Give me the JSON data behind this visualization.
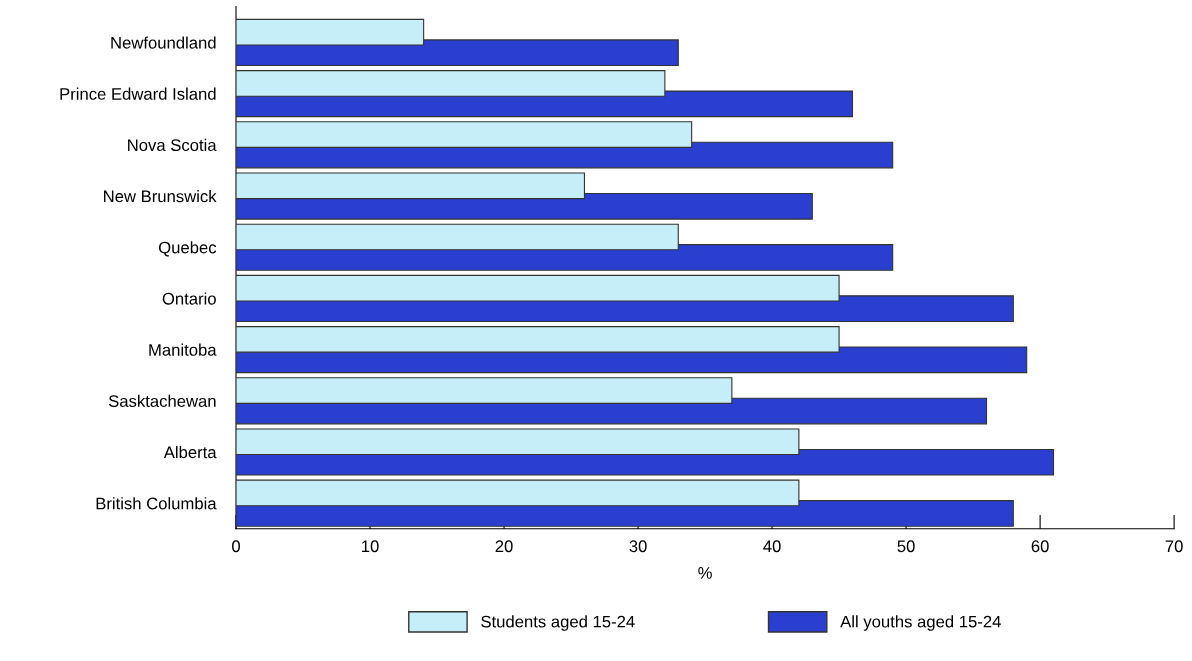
{
  "chart_data": {
    "type": "bar",
    "orientation": "horizontal",
    "xlabel": "%",
    "categories": [
      "Newfoundland",
      "Prince Edward Island",
      "Nova Scotia",
      "New Brunswick",
      "Quebec",
      "Ontario",
      "Manitoba",
      "Sasktachewan",
      "Alberta",
      "British Columbia"
    ],
    "series": [
      {
        "name": "Students aged 15-24",
        "color": "#c6eef8",
        "values": [
          14,
          32,
          34,
          26,
          33,
          45,
          45,
          37,
          42,
          42
        ]
      },
      {
        "name": "All youths aged 15-24",
        "color": "#2a3fd0",
        "values": [
          33,
          46,
          49,
          43,
          49,
          58,
          59,
          56,
          61,
          58
        ]
      }
    ],
    "xlim": [
      0,
      70
    ],
    "xticks": [
      0,
      10,
      20,
      30,
      40,
      50,
      60,
      70
    ],
    "grid": false,
    "legend": "bottom"
  }
}
